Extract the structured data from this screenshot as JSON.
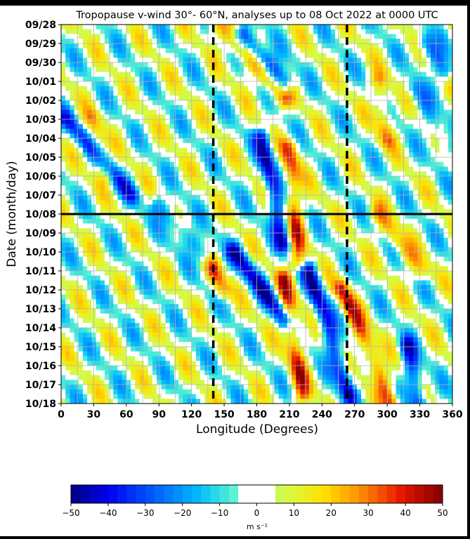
{
  "chart_data": {
    "type": "heatmap",
    "title": "Tropopause v-wind 30°- 60°N, analyses up to 08 Oct 2022 at 0000 UTC",
    "xlabel": "Longitude (Degrees)",
    "ylabel": "Date (month/day)",
    "x_ticks": [
      0,
      30,
      60,
      90,
      120,
      150,
      180,
      210,
      240,
      270,
      300,
      330,
      360
    ],
    "y_ticks": [
      "09/28",
      "09/29",
      "09/30",
      "10/01",
      "10/02",
      "10/03",
      "10/04",
      "10/05",
      "10/06",
      "10/07",
      "10/08",
      "10/09",
      "10/10",
      "10/11",
      "10/12",
      "10/13",
      "10/14",
      "10/15",
      "10/16",
      "10/17",
      "10/18"
    ],
    "xlim": [
      0,
      360
    ],
    "grid": true,
    "analysis_line": "10/08",
    "dashed_longitudes": [
      140,
      263
    ],
    "colorbar": {
      "ticks": [
        -50,
        -40,
        -30,
        -20,
        -10,
        0,
        10,
        20,
        30,
        40,
        50
      ],
      "units": "m s⁻¹",
      "range": [
        -50,
        50
      ]
    },
    "features": [
      {
        "sign": "positive",
        "peak": 28,
        "start": {
          "day": 0.0,
          "lon": 143
        },
        "end": {
          "day": 4.0,
          "lon": 205
        }
      },
      {
        "sign": "negative",
        "peak": -40,
        "start": {
          "day": 0.5,
          "lon": 168
        },
        "end": {
          "day": 3.0,
          "lon": 205
        }
      },
      {
        "sign": "negative",
        "peak": -38,
        "start": {
          "day": 6.0,
          "lon": 185
        },
        "end": {
          "day": 11.5,
          "lon": 205
        }
      },
      {
        "sign": "positive",
        "peak": 30,
        "start": {
          "day": 6.5,
          "lon": 210
        },
        "end": {
          "day": 12.5,
          "lon": 218
        }
      },
      {
        "sign": "negative",
        "peak": -35,
        "start": {
          "day": 12.0,
          "lon": 160
        },
        "end": {
          "day": 15.5,
          "lon": 205
        }
      },
      {
        "sign": "positive",
        "peak": 25,
        "start": {
          "day": 13.0,
          "lon": 140
        },
        "end": {
          "day": 14.0,
          "lon": 148
        }
      },
      {
        "sign": "positive",
        "peak": 32,
        "start": {
          "day": 13.5,
          "lon": 205
        },
        "end": {
          "day": 19.5,
          "lon": 222
        }
      },
      {
        "sign": "negative",
        "peak": -38,
        "start": {
          "day": 13.0,
          "lon": 228
        },
        "end": {
          "day": 19.5,
          "lon": 265
        }
      },
      {
        "sign": "positive",
        "peak": 35,
        "start": {
          "day": 14.0,
          "lon": 258
        },
        "end": {
          "day": 20.0,
          "lon": 305
        }
      },
      {
        "sign": "negative",
        "peak": -35,
        "start": {
          "day": 17.0,
          "lon": 318
        },
        "end": {
          "day": 20.0,
          "lon": 330
        }
      },
      {
        "sign": "negative",
        "peak": -30,
        "start": {
          "day": 1.0,
          "lon": 335
        },
        "end": {
          "day": 2.5,
          "lon": 352
        }
      },
      {
        "sign": "positive",
        "peak": 22,
        "start": {
          "day": 3.0,
          "lon": 292
        },
        "end": {
          "day": 6.0,
          "lon": 300
        }
      },
      {
        "sign": "positive",
        "peak": 22,
        "start": {
          "day": 10.0,
          "lon": 290
        },
        "end": {
          "day": 13.0,
          "lon": 330
        }
      },
      {
        "sign": "negative",
        "peak": -25,
        "start": {
          "day": 5.0,
          "lon": 5
        },
        "end": {
          "day": 9.0,
          "lon": 65
        }
      },
      {
        "sign": "negative",
        "peak": -25,
        "start": {
          "day": 9.5,
          "lon": 90
        },
        "end": {
          "day": 12.0,
          "lon": 130
        }
      },
      {
        "sign": "positive",
        "peak": 18,
        "start": {
          "day": 5.0,
          "lon": 28
        },
        "end": {
          "day": 8.0,
          "lon": 40
        }
      },
      {
        "sign": "negative",
        "peak": -20,
        "start": {
          "day": 3.5,
          "lon": 325
        },
        "end": {
          "day": 6.5,
          "lon": 355
        }
      }
    ]
  }
}
